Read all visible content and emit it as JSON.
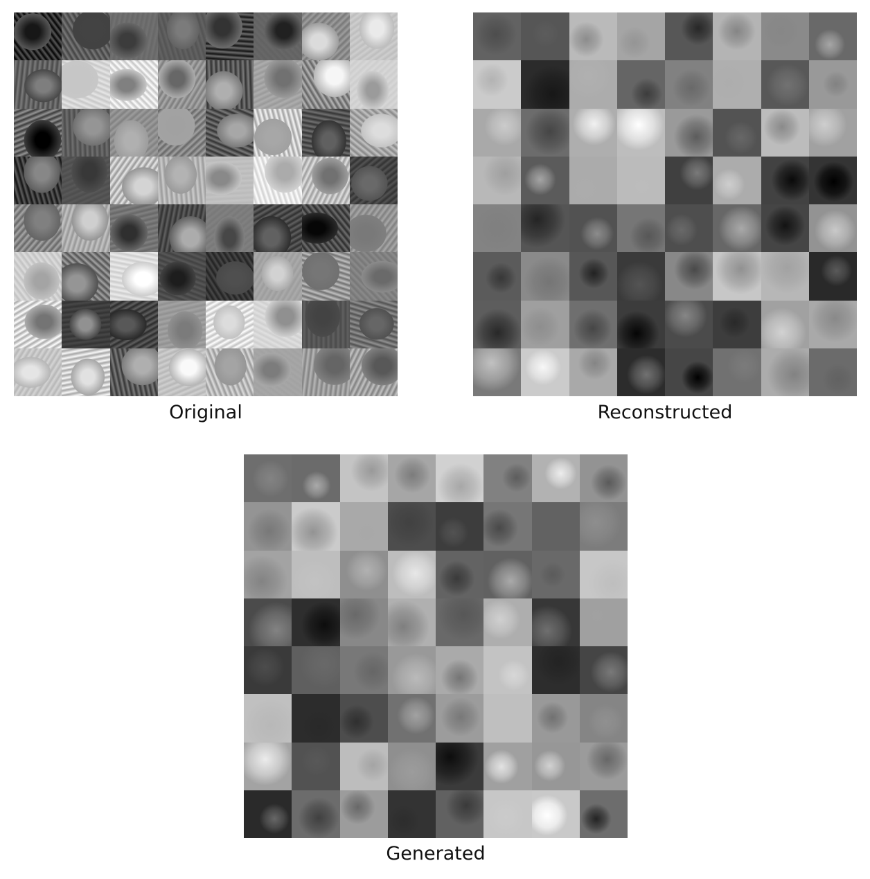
{
  "panels": {
    "original": {
      "caption": "Original"
    },
    "reconstructed": {
      "caption": "Reconstructed"
    },
    "generated": {
      "caption": "Generated"
    }
  },
  "colors": {
    "background": "#ffffff",
    "caption_text": "#111111"
  }
}
